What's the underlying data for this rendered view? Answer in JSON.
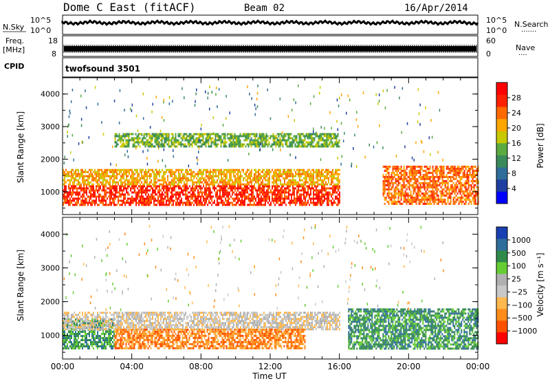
{
  "header": {
    "station": "Dome C East (fitACF)",
    "beam": "Beam 02",
    "date": "16/Apr/2014"
  },
  "left_labels": {
    "nsky": "N.Sky",
    "freq_line1": "Freq.",
    "freq_line2": "[MHz]",
    "cpid": "CPID"
  },
  "right_labels": {
    "nsearch": "N.Search",
    "nave": "Nave"
  },
  "strip_ticks": {
    "noise_left_top": "10^5",
    "noise_left_bottom": "10^0",
    "noise_right_top": "10^5",
    "noise_right_bottom": "10^0",
    "freq_left_top": "18",
    "freq_left_bottom": "8",
    "nave_right_top": "60",
    "nave_right_bottom": "0"
  },
  "cpid_text": "twofsound 3501",
  "colors": {
    "power_scale": [
      "#0000ff",
      "#1e3fa0",
      "#2f6e9a",
      "#3a8a5a",
      "#5aaa40",
      "#c8c800",
      "#ffa500",
      "#ff6a00",
      "#ff2000",
      "#ff0000"
    ],
    "velocity_scale": [
      "#ff0000",
      "#ff5000",
      "#ff8c1a",
      "#ffb84d",
      "#c8c8c8",
      "#b0b0b0",
      "#66cc33",
      "#2f8a4a",
      "#2f6e9a",
      "#1a3fb0"
    ]
  },
  "chart_data": [
    {
      "type": "heatmap",
      "name": "Power",
      "xlabel": "",
      "ylabel": "Slant Range [km]",
      "ylim": [
        300,
        4500
      ],
      "xlim_hours": [
        0,
        24
      ],
      "yticks": [
        1000,
        2000,
        3000,
        4000
      ],
      "colorbar": {
        "label": "Power [dB]",
        "ticks": [
          4,
          8,
          12,
          16,
          20,
          24,
          28
        ],
        "range": [
          0,
          32
        ]
      },
      "features": [
        {
          "region": "E/near-range echoes",
          "time_range_hours": [
            0,
            16
          ],
          "range_km": [
            600,
            1200
          ],
          "typical_value": 28
        },
        {
          "region": "F-region band",
          "time_range_hours": [
            0,
            16
          ],
          "range_km": [
            1200,
            1700
          ],
          "typical_value": 20
        },
        {
          "region": "Far range band",
          "time_range_hours": [
            3,
            16
          ],
          "range_km": [
            2400,
            2800
          ],
          "typical_value": 14
        },
        {
          "region": "Evening echoes",
          "time_range_hours": [
            18.5,
            24
          ],
          "range_km": [
            600,
            1800
          ],
          "typical_value": 24
        }
      ]
    },
    {
      "type": "heatmap",
      "name": "Velocity",
      "xlabel": "Time UT",
      "ylabel": "Slant Range [km]",
      "ylim": [
        300,
        4500
      ],
      "xlim_hours": [
        0,
        24
      ],
      "xticks": [
        "00:00",
        "04:00",
        "08:00",
        "12:00",
        "16:00",
        "20:00",
        "00:00"
      ],
      "yticks": [
        1000,
        2000,
        3000,
        4000
      ],
      "colorbar": {
        "label": "Velocity [m s⁻¹]",
        "ticks": [
          "1000",
          "500",
          "100",
          "25",
          "−25",
          "−100",
          "−500",
          "−1000"
        ]
      },
      "features": [
        {
          "region": "Near-range irregularities",
          "time_range_hours": [
            0,
            3
          ],
          "range_km": [
            600,
            1500
          ],
          "typical_value": 200
        },
        {
          "region": "Ground scatter band",
          "time_range_hours": [
            0,
            16
          ],
          "range_km": [
            1200,
            1700
          ],
          "typical_value": 0
        },
        {
          "region": "Near range flow",
          "time_range_hours": [
            3,
            14
          ],
          "range_km": [
            600,
            1200
          ],
          "typical_value": -100
        },
        {
          "region": "Evening flow",
          "time_range_hours": [
            16.5,
            24
          ],
          "range_km": [
            600,
            1800
          ],
          "typical_value": 300
        }
      ]
    }
  ]
}
